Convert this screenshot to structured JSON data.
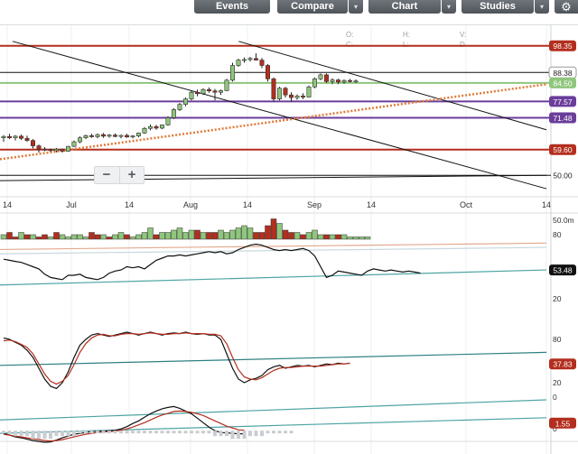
{
  "toolbar": {
    "events_label": "Events",
    "compare_label": "Compare",
    "chart_label": "Chart",
    "studies_label": "Studies",
    "dropdown_glyph": "▾",
    "settings_icon": "gear-icon"
  },
  "ohlc": {
    "o": "O:",
    "h": "H:",
    "v": "V:",
    "c": "C:",
    "l": "L:",
    "d": "D:"
  },
  "colors": {
    "up": "#8fc67c",
    "down": "#b32e1e",
    "red_line": "#b32e1e",
    "purple_line": "#6a3d9a",
    "orange_trend": "#e07b39",
    "teal": "#4fa3a5",
    "black": "#111111"
  },
  "chart_data": [
    {
      "type": "candlestick",
      "panel": "price",
      "x_axis": {
        "tick_labels": [
          "14",
          "Jul",
          "14",
          "Aug",
          "14",
          "Sep",
          "14",
          "Oct",
          "14"
        ],
        "tick_values": [
          "Jun 14",
          "Jul 1",
          "Jul 14",
          "Aug 1",
          "Aug 14",
          "Sep 1",
          "Sep 14",
          "Oct 1",
          "Oct 14"
        ]
      },
      "ylim": [
        43,
        106
      ],
      "price_labels": [
        "98.35",
        "88.38",
        "84.50",
        "77.57",
        "71.48",
        "59.60",
        "50.00"
      ],
      "horizontal_levels": [
        {
          "value": 98.35,
          "color": "#b32e1e"
        },
        {
          "value": 88.38,
          "color": "#111111"
        },
        {
          "value": 84.5,
          "color": "#8fc67c"
        },
        {
          "value": 77.57,
          "color": "#6a3d9a"
        },
        {
          "value": 71.48,
          "color": "#6a3d9a"
        },
        {
          "value": 59.6,
          "color": "#b32e1e"
        },
        {
          "value": 50.0,
          "color": "#111111"
        }
      ],
      "trend_lines": [
        {
          "color": "#111111",
          "from": [
            2,
            100
          ],
          "to": [
            87,
            45
          ]
        },
        {
          "color": "#111111",
          "from": [
            38,
            100
          ],
          "to": [
            87,
            67
          ]
        },
        {
          "color": "#111111",
          "from": [
            0,
            48
          ],
          "to": [
            87,
            50
          ]
        },
        {
          "color": "#e07b39",
          "dashed": true,
          "from": [
            0,
            56
          ],
          "to": [
            87,
            84
          ]
        }
      ],
      "candles": [
        {
          "o": 64.0,
          "h": 65.0,
          "l": 62.5,
          "c": 64.5
        },
        {
          "o": 64.5,
          "h": 65.5,
          "l": 63.5,
          "c": 64.0
        },
        {
          "o": 64.0,
          "h": 65.0,
          "l": 63.0,
          "c": 64.6
        },
        {
          "o": 64.6,
          "h": 65.2,
          "l": 63.2,
          "c": 63.8
        },
        {
          "o": 63.8,
          "h": 64.8,
          "l": 62.5,
          "c": 63.0
        },
        {
          "o": 63.0,
          "h": 63.5,
          "l": 60.0,
          "c": 61.0
        },
        {
          "o": 61.0,
          "h": 61.5,
          "l": 58.5,
          "c": 59.8
        },
        {
          "o": 59.8,
          "h": 60.5,
          "l": 59.0,
          "c": 59.6
        },
        {
          "o": 59.6,
          "h": 60.0,
          "l": 58.8,
          "c": 59.2
        },
        {
          "o": 59.2,
          "h": 60.2,
          "l": 58.6,
          "c": 59.8
        },
        {
          "o": 59.8,
          "h": 60.0,
          "l": 58.5,
          "c": 59.0
        },
        {
          "o": 59.0,
          "h": 61.0,
          "l": 58.8,
          "c": 60.8
        },
        {
          "o": 60.8,
          "h": 63.0,
          "l": 60.5,
          "c": 62.5
        },
        {
          "o": 62.5,
          "h": 64.5,
          "l": 62.0,
          "c": 64.0
        },
        {
          "o": 64.0,
          "h": 65.2,
          "l": 63.5,
          "c": 64.8
        },
        {
          "o": 64.8,
          "h": 65.5,
          "l": 64.0,
          "c": 64.4
        },
        {
          "o": 64.4,
          "h": 65.6,
          "l": 63.8,
          "c": 65.2
        },
        {
          "o": 65.2,
          "h": 65.8,
          "l": 64.0,
          "c": 64.6
        },
        {
          "o": 64.6,
          "h": 65.4,
          "l": 64.0,
          "c": 65.0
        },
        {
          "o": 65.0,
          "h": 65.6,
          "l": 64.2,
          "c": 64.5
        },
        {
          "o": 64.5,
          "h": 65.2,
          "l": 63.8,
          "c": 64.9
        },
        {
          "o": 64.9,
          "h": 65.5,
          "l": 64.0,
          "c": 64.3
        },
        {
          "o": 64.3,
          "h": 65.0,
          "l": 63.8,
          "c": 64.7
        },
        {
          "o": 64.7,
          "h": 66.0,
          "l": 64.2,
          "c": 65.8
        },
        {
          "o": 65.8,
          "h": 68.0,
          "l": 65.5,
          "c": 67.5
        },
        {
          "o": 67.5,
          "h": 69.0,
          "l": 66.8,
          "c": 68.2
        },
        {
          "o": 68.2,
          "h": 68.8,
          "l": 67.0,
          "c": 67.6
        },
        {
          "o": 67.6,
          "h": 69.0,
          "l": 67.2,
          "c": 68.8
        },
        {
          "o": 68.8,
          "h": 72.0,
          "l": 68.5,
          "c": 71.5
        },
        {
          "o": 71.5,
          "h": 75.0,
          "l": 71.0,
          "c": 74.5
        },
        {
          "o": 74.5,
          "h": 77.0,
          "l": 74.0,
          "c": 76.5
        },
        {
          "o": 76.5,
          "h": 79.0,
          "l": 75.8,
          "c": 78.5
        },
        {
          "o": 78.5,
          "h": 81.5,
          "l": 78.0,
          "c": 81.0
        },
        {
          "o": 81.0,
          "h": 82.0,
          "l": 79.5,
          "c": 80.5
        },
        {
          "o": 80.5,
          "h": 82.5,
          "l": 80.0,
          "c": 82.0
        },
        {
          "o": 82.0,
          "h": 82.8,
          "l": 80.8,
          "c": 81.5
        },
        {
          "o": 81.5,
          "h": 82.2,
          "l": 78.0,
          "c": 81.0
        },
        {
          "o": 81.0,
          "h": 82.0,
          "l": 80.0,
          "c": 81.6
        },
        {
          "o": 81.6,
          "h": 86.0,
          "l": 81.4,
          "c": 85.5
        },
        {
          "o": 85.5,
          "h": 92.0,
          "l": 85.0,
          "c": 91.0
        },
        {
          "o": 91.0,
          "h": 93.5,
          "l": 90.5,
          "c": 93.0
        },
        {
          "o": 93.0,
          "h": 94.0,
          "l": 92.0,
          "c": 93.2
        },
        {
          "o": 93.2,
          "h": 94.2,
          "l": 92.5,
          "c": 93.6
        },
        {
          "o": 93.6,
          "h": 95.5,
          "l": 92.8,
          "c": 93.0
        },
        {
          "o": 93.0,
          "h": 93.8,
          "l": 90.0,
          "c": 91.0
        },
        {
          "o": 91.0,
          "h": 91.5,
          "l": 85.0,
          "c": 86.0
        },
        {
          "o": 86.0,
          "h": 86.5,
          "l": 77.5,
          "c": 78.5
        },
        {
          "o": 78.5,
          "h": 83.0,
          "l": 78.0,
          "c": 82.5
        },
        {
          "o": 82.5,
          "h": 83.0,
          "l": 79.0,
          "c": 80.0
        },
        {
          "o": 80.0,
          "h": 81.0,
          "l": 77.5,
          "c": 79.0
        },
        {
          "o": 79.0,
          "h": 80.2,
          "l": 78.2,
          "c": 79.6
        },
        {
          "o": 79.6,
          "h": 80.6,
          "l": 78.4,
          "c": 79.2
        },
        {
          "o": 79.2,
          "h": 83.5,
          "l": 79.0,
          "c": 83.0
        },
        {
          "o": 83.0,
          "h": 86.5,
          "l": 82.5,
          "c": 86.0
        },
        {
          "o": 86.0,
          "h": 88.0,
          "l": 85.5,
          "c": 87.5
        },
        {
          "o": 87.5,
          "h": 88.0,
          "l": 84.5,
          "c": 85.0
        },
        {
          "o": 85.0,
          "h": 86.2,
          "l": 84.0,
          "c": 85.6
        },
        {
          "o": 85.6,
          "h": 86.0,
          "l": 84.0,
          "c": 84.8
        },
        {
          "o": 84.8,
          "h": 85.8,
          "l": 84.2,
          "c": 85.4
        },
        {
          "o": 85.4,
          "h": 86.0,
          "l": 84.6,
          "c": 85.0
        },
        {
          "o": 85.0,
          "h": 85.8,
          "l": 84.5,
          "c": 85.2
        }
      ]
    },
    {
      "type": "bar",
      "panel": "volume",
      "ylabel": "50.0m",
      "values": [
        2,
        3,
        1,
        3,
        2,
        2,
        1,
        2,
        1,
        3,
        2,
        1,
        2,
        2,
        1,
        3,
        2,
        2,
        1,
        2,
        3,
        2,
        1,
        2,
        3,
        5,
        2,
        3,
        3,
        4,
        5,
        3,
        4,
        4,
        3,
        3,
        3,
        4,
        3,
        4,
        5,
        6,
        5,
        3,
        3,
        6,
        9,
        7,
        4,
        3,
        3,
        2,
        3,
        4,
        2,
        2,
        2,
        2,
        2,
        1,
        1,
        1,
        1
      ],
      "direction": [
        1,
        0,
        0,
        1,
        0,
        1,
        0,
        0,
        1,
        0,
        1,
        1,
        1,
        1,
        1,
        0,
        0,
        1,
        0,
        1,
        1,
        0,
        1,
        1,
        1,
        1,
        0,
        1,
        1,
        1,
        1,
        1,
        1,
        0,
        1,
        0,
        0,
        1,
        1,
        1,
        1,
        1,
        1,
        0,
        0,
        0,
        0,
        1,
        0,
        0,
        1,
        0,
        1,
        1,
        1,
        0,
        1,
        0,
        1,
        1,
        1,
        1,
        1
      ]
    },
    {
      "type": "line",
      "panel": "rsi",
      "ylim": [
        0,
        100
      ],
      "y_ticks": [
        "80",
        "20"
      ],
      "last_value_label": "53.48",
      "series": [
        {
          "color": "#111111",
          "values": [
            57,
            56,
            55,
            54,
            52,
            50,
            48,
            43,
            40,
            39,
            38,
            42,
            42,
            43,
            40,
            39,
            38,
            40,
            44,
            46,
            47,
            50,
            49,
            50,
            48,
            52,
            56,
            58,
            60,
            60,
            61,
            60,
            61,
            62,
            63,
            64,
            63,
            64,
            62,
            63,
            66,
            68,
            70,
            71,
            70,
            68,
            66,
            65,
            66,
            65,
            66,
            67,
            65,
            60,
            50,
            40,
            42,
            46,
            45,
            44,
            43,
            42,
            46,
            48,
            47,
            46,
            47,
            46,
            45,
            46,
            45,
            44
          ]
        }
      ],
      "bands": [
        {
          "color": "#e3a98e",
          "from": [
            0,
            66
          ],
          "to": [
            87,
            72
          ]
        },
        {
          "color": "#c7d8de",
          "from": [
            0,
            62
          ],
          "to": [
            87,
            68
          ]
        },
        {
          "color": "#4fa3a5",
          "from": [
            0,
            33
          ],
          "to": [
            87,
            47
          ]
        }
      ]
    },
    {
      "type": "line",
      "panel": "stochastic",
      "ylim": [
        0,
        100
      ],
      "y_ticks": [
        "80",
        "20",
        "0"
      ],
      "last_value_label": "37.83",
      "series": [
        {
          "color": "#111111",
          "values": [
            82,
            80,
            76,
            72,
            65,
            55,
            40,
            25,
            15,
            12,
            20,
            35,
            55,
            72,
            80,
            86,
            88,
            86,
            84,
            86,
            88,
            90,
            88,
            86,
            88,
            90,
            88,
            86,
            88,
            89,
            88,
            90,
            88,
            87,
            88,
            86,
            86,
            80,
            60,
            40,
            25,
            20,
            24,
            26,
            30,
            38,
            42,
            44,
            40,
            42,
            44,
            43,
            44,
            42,
            44,
            46,
            45,
            47,
            46,
            47
          ]
        },
        {
          "color": "#b32e1e",
          "values": [
            78,
            79,
            77,
            73,
            69,
            60,
            46,
            32,
            22,
            18,
            22,
            30,
            45,
            62,
            74,
            82,
            86,
            87,
            85,
            85,
            87,
            88,
            88,
            87,
            88,
            89,
            88,
            87,
            87,
            88,
            88,
            89,
            88,
            88,
            88,
            87,
            87,
            85,
            74,
            55,
            38,
            28,
            25,
            24,
            27,
            32,
            37,
            40,
            41,
            41,
            42,
            43,
            43,
            43,
            43,
            44,
            45,
            46,
            46,
            47
          ]
        }
      ],
      "bands": [
        {
          "color": "#2e7f82",
          "from": [
            0,
            44
          ],
          "to": [
            87,
            62
          ]
        }
      ]
    },
    {
      "type": "line",
      "panel": "macd",
      "last_value_label": "1.55",
      "y_ticks": [
        "0"
      ],
      "series": [
        {
          "color": "#111111",
          "values": [
            -1.0,
            -1.4,
            -1.8,
            -2.0,
            -2.3,
            -2.6,
            -2.8,
            -3.0,
            -2.9,
            -2.5,
            -2.0,
            -1.6,
            -1.2,
            -1.0,
            -0.8,
            -0.6,
            -0.5,
            -0.5,
            -0.4,
            -0.3,
            0.0,
            0.5,
            1.2,
            1.8,
            2.6,
            3.4,
            4.0,
            4.5,
            4.8,
            5.0,
            4.6,
            4.0,
            3.4,
            2.4,
            1.4,
            0.4,
            -0.4,
            -0.8,
            -0.9,
            -1.0,
            -1.1,
            -1.1
          ]
        },
        {
          "color": "#b32e1e",
          "values": [
            -1.2,
            -1.4,
            -1.6,
            -1.8,
            -2.0,
            -2.2,
            -2.4,
            -2.6,
            -2.7,
            -2.6,
            -2.4,
            -2.1,
            -1.8,
            -1.5,
            -1.2,
            -1.0,
            -0.8,
            -0.7,
            -0.6,
            -0.5,
            -0.3,
            0.0,
            0.4,
            0.9,
            1.4,
            2.0,
            2.6,
            3.1,
            3.5,
            3.9,
            4.0,
            3.9,
            3.7,
            3.4,
            3.0,
            2.4,
            1.8,
            1.2,
            0.6,
            0.2,
            -0.2,
            -0.3
          ]
        }
      ],
      "histogram": [
        -1,
        -1,
        -2,
        -2,
        -2,
        -3,
        -3,
        -3,
        -3,
        -2,
        -2,
        -2,
        -2,
        -1,
        -1,
        -1,
        -1,
        -1,
        -1,
        -1,
        -1,
        -1,
        -1,
        -1,
        -1,
        -1,
        -1,
        -1,
        -1,
        -1,
        -1,
        -1,
        -1,
        -1,
        -1,
        -1,
        -2,
        -2,
        -2,
        -3,
        -3,
        -3,
        -2,
        -2,
        -2,
        -1,
        -1,
        -1,
        -1,
        -1
      ],
      "bands": [
        {
          "color": "#4fa3a5",
          "from": [
            0,
            2.0
          ],
          "to": [
            87,
            6.5
          ]
        },
        {
          "color": "#4fa3a5",
          "from": [
            0,
            -1.0
          ],
          "to": [
            87,
            2.5
          ]
        }
      ]
    }
  ]
}
